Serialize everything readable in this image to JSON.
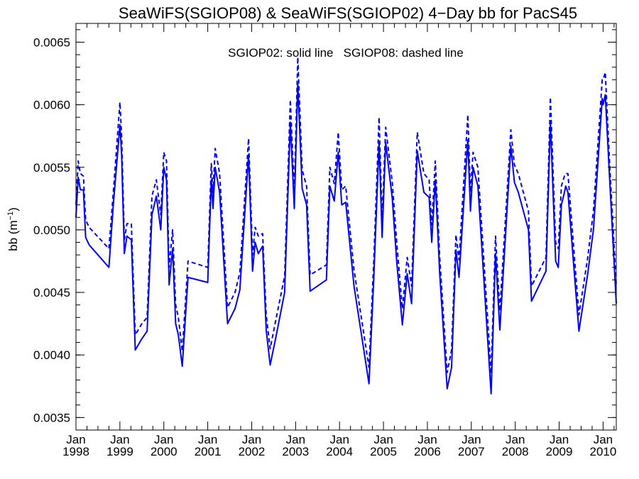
{
  "chart_data": {
    "type": "line",
    "title": "SeaWiFS(SGIOP08) & SeaWiFS(SGIOP02) 4−Day bb for PacS45",
    "annotation": "SGIOP02: solid line   SGIOP08: dashed line",
    "ylabel_main": "bb (m",
    "ylabel_sup": "−1",
    "ylabel_close": ")",
    "xlim": [
      1998.0,
      2010.3
    ],
    "ylim": [
      0.0034,
      0.00665
    ],
    "x_tick_month": "Jan",
    "x_tick_years": [
      "1998",
      "1999",
      "2000",
      "2001",
      "2002",
      "2003",
      "2004",
      "2005",
      "2006",
      "2007",
      "2008",
      "2009",
      "2010"
    ],
    "y_ticks": [
      "0.0035",
      "0.0040",
      "0.0045",
      "0.0050",
      "0.0055",
      "0.0060",
      "0.0065"
    ],
    "line_color": "#0000ff",
    "series": [
      {
        "name": "SGIOP02",
        "style": "solid",
        "x": [
          1998.0,
          1998.05,
          1998.1,
          1998.17,
          1998.22,
          1998.3,
          1998.75,
          1998.85,
          1999.0,
          1999.04,
          1999.1,
          1999.16,
          1999.26,
          1999.35,
          1999.5,
          1999.62,
          1999.73,
          1999.83,
          1999.93,
          2000.0,
          2000.06,
          2000.12,
          2000.2,
          2000.27,
          2000.33,
          2000.42,
          2000.55,
          2001.0,
          2001.08,
          2001.12,
          2001.17,
          2001.27,
          2001.45,
          2001.62,
          2001.73,
          2001.93,
          2002.02,
          2002.08,
          2002.15,
          2002.25,
          2002.33,
          2002.42,
          2002.55,
          2002.75,
          2002.88,
          2002.97,
          2003.05,
          2003.15,
          2003.25,
          2003.33,
          2003.7,
          2003.78,
          2003.88,
          2003.97,
          2004.05,
          2004.14,
          2004.33,
          2004.67,
          2004.78,
          2004.9,
          2004.97,
          2005.05,
          2005.2,
          2005.3,
          2005.43,
          2005.54,
          2005.64,
          2005.77,
          2005.92,
          2006.04,
          2006.1,
          2006.18,
          2006.28,
          2006.45,
          2006.55,
          2006.65,
          2006.72,
          2006.92,
          2006.98,
          2007.04,
          2007.15,
          2007.25,
          2007.45,
          2007.55,
          2007.65,
          2007.9,
          2007.98,
          2008.07,
          2008.3,
          2008.37,
          2008.7,
          2008.8,
          2008.92,
          2008.98,
          2009.05,
          2009.12,
          2009.15,
          2009.2,
          2009.45,
          2009.65,
          2009.78,
          2009.98,
          2010.0,
          2010.05,
          2010.15,
          2010.3
        ],
        "y": [
          0.0051,
          0.00542,
          0.00532,
          0.00532,
          0.00494,
          0.00488,
          0.0047,
          0.0052,
          0.00584,
          0.0056,
          0.00481,
          0.00495,
          0.00492,
          0.00404,
          0.00413,
          0.00419,
          0.00512,
          0.00527,
          0.005,
          0.0055,
          0.0054,
          0.00456,
          0.00485,
          0.00425,
          0.00416,
          0.00391,
          0.00462,
          0.00458,
          0.0054,
          0.00517,
          0.0055,
          0.0053,
          0.00425,
          0.00437,
          0.00452,
          0.0056,
          0.00467,
          0.0049,
          0.00481,
          0.00487,
          0.0042,
          0.00392,
          0.00414,
          0.0045,
          0.00586,
          0.00517,
          0.00617,
          0.00533,
          0.0052,
          0.00451,
          0.0046,
          0.00535,
          0.00523,
          0.00562,
          0.0052,
          0.00522,
          0.00455,
          0.00377,
          0.00462,
          0.0057,
          0.00494,
          0.0057,
          0.00525,
          0.00475,
          0.00424,
          0.00465,
          0.00441,
          0.00563,
          0.0053,
          0.00526,
          0.0049,
          0.0054,
          0.00465,
          0.00373,
          0.0039,
          0.00484,
          0.00462,
          0.00572,
          0.00515,
          0.0055,
          0.00535,
          0.0048,
          0.00369,
          0.00481,
          0.0042,
          0.00567,
          0.00538,
          0.0053,
          0.005,
          0.00443,
          0.00467,
          0.00587,
          0.00475,
          0.0047,
          0.0052,
          0.0053,
          0.00535,
          0.0053,
          0.00419,
          0.00465,
          0.005,
          0.00605,
          0.006,
          0.00608,
          0.0054,
          0.00441
        ]
      },
      {
        "name": "SGIOP08",
        "style": "dashed",
        "x": [
          1998.0,
          1998.05,
          1998.1,
          1998.17,
          1998.22,
          1998.3,
          1998.75,
          1998.85,
          1999.0,
          1999.04,
          1999.1,
          1999.16,
          1999.26,
          1999.35,
          1999.5,
          1999.62,
          1999.73,
          1999.83,
          1999.93,
          2000.0,
          2000.06,
          2000.12,
          2000.2,
          2000.27,
          2000.33,
          2000.42,
          2000.55,
          2001.0,
          2001.08,
          2001.12,
          2001.17,
          2001.27,
          2001.45,
          2001.62,
          2001.73,
          2001.93,
          2002.02,
          2002.08,
          2002.15,
          2002.25,
          2002.33,
          2002.42,
          2002.55,
          2002.75,
          2002.88,
          2002.97,
          2003.05,
          2003.15,
          2003.25,
          2003.33,
          2003.7,
          2003.78,
          2003.88,
          2003.97,
          2004.05,
          2004.14,
          2004.33,
          2004.67,
          2004.78,
          2004.9,
          2004.97,
          2005.05,
          2005.2,
          2005.3,
          2005.43,
          2005.54,
          2005.64,
          2005.77,
          2005.92,
          2006.04,
          2006.1,
          2006.18,
          2006.28,
          2006.45,
          2006.55,
          2006.65,
          2006.72,
          2006.92,
          2006.98,
          2007.04,
          2007.15,
          2007.25,
          2007.45,
          2007.55,
          2007.65,
          2007.9,
          2007.98,
          2008.07,
          2008.3,
          2008.37,
          2008.7,
          2008.8,
          2008.92,
          2008.98,
          2009.05,
          2009.12,
          2009.15,
          2009.2,
          2009.45,
          2009.65,
          2009.78,
          2009.98,
          2010.0,
          2010.05,
          2010.15,
          2010.3
        ],
        "y": [
          0.0052,
          0.00555,
          0.00545,
          0.00543,
          0.00508,
          0.00502,
          0.00485,
          0.0053,
          0.00602,
          0.00575,
          0.00492,
          0.00505,
          0.00505,
          0.00416,
          0.00425,
          0.0043,
          0.00527,
          0.0054,
          0.00512,
          0.00562,
          0.00555,
          0.0047,
          0.005,
          0.0044,
          0.0043,
          0.00403,
          0.00475,
          0.0047,
          0.00553,
          0.0053,
          0.00565,
          0.00545,
          0.00438,
          0.0045,
          0.00466,
          0.00573,
          0.0048,
          0.00502,
          0.00495,
          0.00497,
          0.00432,
          0.00405,
          0.00428,
          0.00463,
          0.00604,
          0.0053,
          0.00638,
          0.00548,
          0.00535,
          0.00464,
          0.00472,
          0.0055,
          0.00537,
          0.00578,
          0.00532,
          0.00535,
          0.00468,
          0.0039,
          0.00476,
          0.0059,
          0.00508,
          0.00582,
          0.00538,
          0.0049,
          0.00437,
          0.00478,
          0.00455,
          0.00578,
          0.00545,
          0.0054,
          0.00504,
          0.00555,
          0.00478,
          0.00386,
          0.00404,
          0.00496,
          0.00476,
          0.00592,
          0.0053,
          0.00562,
          0.0055,
          0.00495,
          0.00385,
          0.00495,
          0.00435,
          0.0058,
          0.00552,
          0.00545,
          0.00515,
          0.00455,
          0.00478,
          0.00606,
          0.0049,
          0.00485,
          0.00535,
          0.00543,
          0.00545,
          0.00545,
          0.00432,
          0.00478,
          0.00515,
          0.0062,
          0.0062,
          0.00626,
          0.00552,
          0.00455
        ]
      }
    ]
  }
}
